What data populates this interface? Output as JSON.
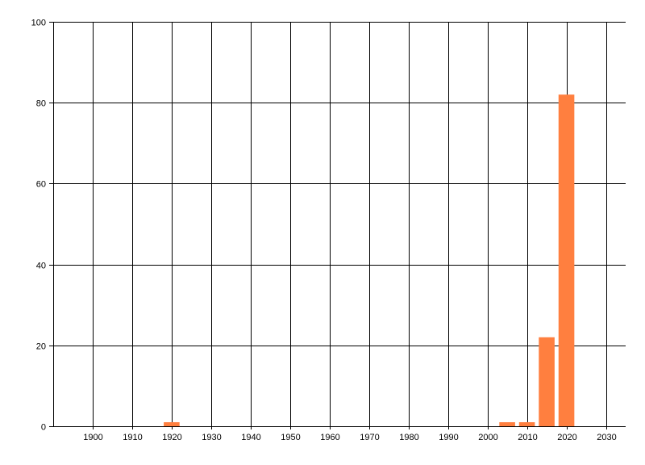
{
  "chart_data": {
    "type": "bar",
    "title": "",
    "xlabel": "",
    "ylabel": "",
    "xlim": [
      1890,
      2035
    ],
    "ylim": [
      0,
      100
    ],
    "grid": true,
    "x_ticks": [
      1900,
      1910,
      1920,
      1930,
      1940,
      1950,
      1960,
      1970,
      1980,
      1990,
      2000,
      2010,
      2020,
      2030
    ],
    "y_ticks": [
      0,
      20,
      40,
      60,
      80,
      100
    ],
    "bar_width_years": 4,
    "bar_color": "#ff7f3f",
    "series": [
      {
        "x": [
          1920,
          2005,
          2010,
          2015,
          2020
        ],
        "values": [
          1,
          1,
          1,
          22,
          82
        ]
      }
    ]
  }
}
